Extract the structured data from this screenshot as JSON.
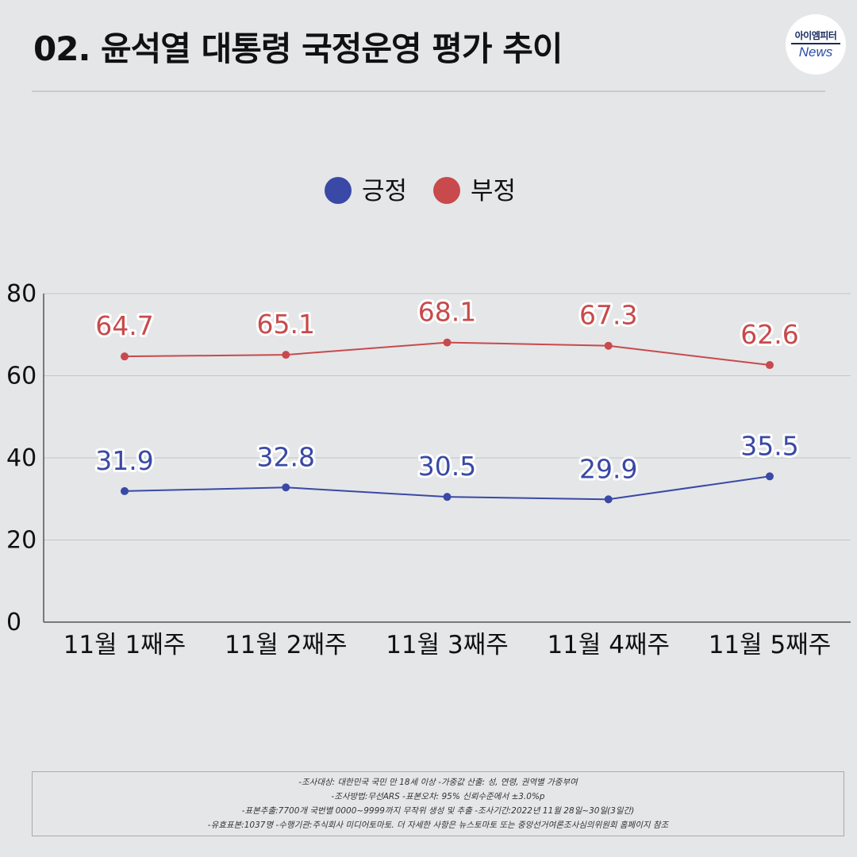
{
  "header": {
    "title": "02. 윤석열 대통령 국정운영 평가 추이",
    "logo_top": "아이엠피터",
    "logo_bottom": "News"
  },
  "colors": {
    "positive": "#3a49a6",
    "negative": "#c84a4c",
    "background": "#e5e6e8"
  },
  "chart_data": {
    "type": "line",
    "title": "",
    "xlabel": "",
    "ylabel": "",
    "categories": [
      "11월 1째주",
      "11월 2째주",
      "11월 3째주",
      "11월 4째주",
      "11월 5째주"
    ],
    "series": [
      {
        "name": "긍정",
        "values": [
          31.9,
          32.8,
          30.5,
          29.9,
          35.5
        ]
      },
      {
        "name": "부정",
        "values": [
          64.7,
          65.1,
          68.1,
          67.3,
          62.6
        ]
      }
    ],
    "ylim": [
      0,
      80
    ],
    "yticks": [
      0,
      20,
      40,
      60,
      80
    ],
    "grid": true,
    "legend_position": "top-center"
  },
  "footnote": {
    "lines": [
      "-조사대상: 대한민국 국민 만 18세 이상  -가중값 산출: 성, 연령, 권역별 가중부여",
      "-조사방법:무선ARS -표본오차: 95% 신뢰수준에서 ±3.0%p",
      "-표본추출:7700개 국번별 0000~9999까지 무작위 생성 및 추출 -조사기간:2022년 11월 28일~30일(3일간)",
      "-유효표본:1037명 -수행기관:주식회사 미디어토마토. 더 자세한 사항은 뉴스토마토 또는 중앙선거여론조사심의위원회 홈페이지 참조"
    ]
  }
}
